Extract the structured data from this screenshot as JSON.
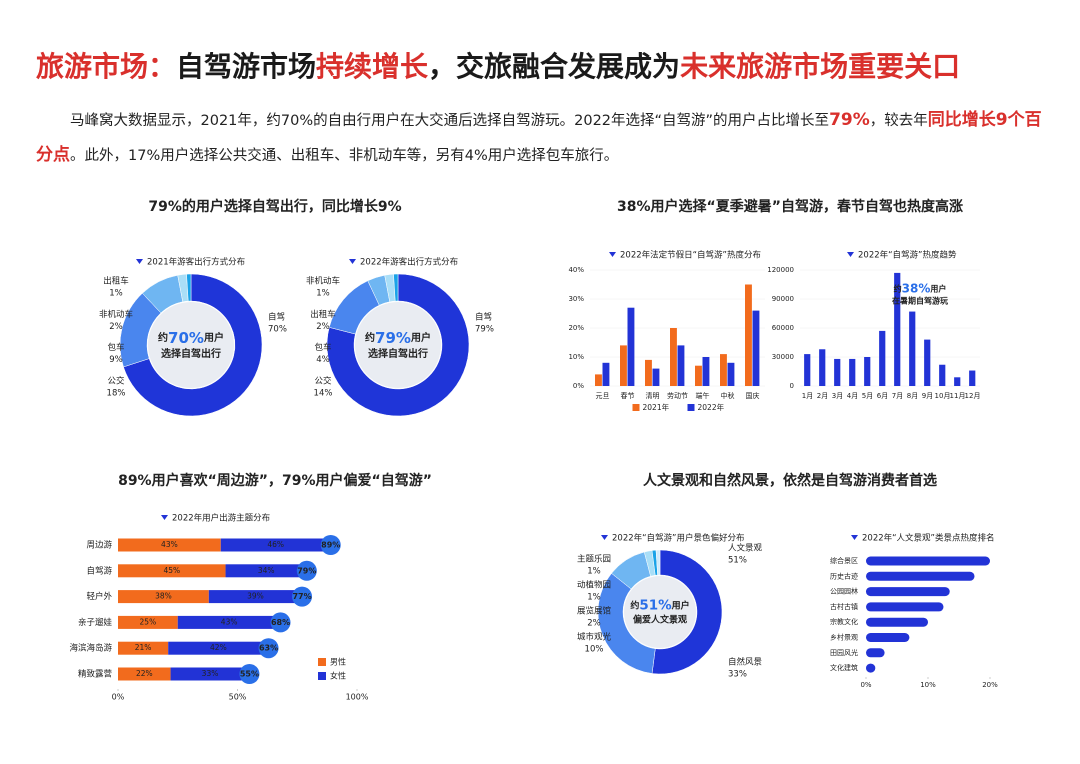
{
  "header": {
    "title": [
      {
        "text": "旅游市场：",
        "color": "#d9302c"
      },
      {
        "text": "自驾游市场",
        "color": "#1a1a1a"
      },
      {
        "text": "持续增长",
        "color": "#d9302c"
      },
      {
        "text": "，交旅融合发展成为",
        "color": "#1a1a1a"
      },
      {
        "text": "未来旅游市场重要关口",
        "color": "#d9302c"
      }
    ]
  },
  "intro": {
    "highlight_color": "#d9302c",
    "parts": [
      {
        "text": "马峰窝大数据显示，2021年，约70%的自由行用户在大交通后选择自驾游玩。2022年选择“自驾游”的用户占比增长至",
        "highlight": false
      },
      {
        "text": "79%",
        "highlight": true
      },
      {
        "text": "，较去年",
        "highlight": false
      },
      {
        "text": "同比增长9个百分点",
        "highlight": true
      },
      {
        "text": "。此外，17%用户选择公共交通、出租车、非机动车等，另有4%用户选择包车旅行。",
        "highlight": false
      }
    ]
  },
  "panels": [
    {
      "title": "79%的用户选择自驾出行，同比增长9%",
      "charts": [
        {
          "type": "donut",
          "subtitle": "2021年游客出行方式分布",
          "center": {
            "before": "约",
            "highlight": "70%",
            "after": "用户",
            "line2": "选择自驾出行"
          },
          "categories": [
            "自驾",
            "公交",
            "包车",
            "非机动车",
            "出租车"
          ],
          "values": [
            70,
            18,
            9,
            2,
            1
          ],
          "value_labels": [
            "70%",
            "18%",
            "9%",
            "2%",
            "1%"
          ],
          "colors": [
            "#1f35d8",
            "#4a86ee",
            "#6fb6f2",
            "#a9def7",
            "#1aa3e8"
          ]
        },
        {
          "type": "donut",
          "subtitle": "2022年游客出行方式分布",
          "center": {
            "before": "约",
            "highlight": "79%",
            "after": "用户",
            "line2": "选择自驾出行"
          },
          "categories": [
            "自驾",
            "公交",
            "包车",
            "出租车",
            "非机动车"
          ],
          "values": [
            79,
            14,
            4,
            2,
            1
          ],
          "value_labels": [
            "79%",
            "14%",
            "4%",
            "2%",
            "1%"
          ],
          "colors": [
            "#1f35d8",
            "#4a86ee",
            "#6fb6f2",
            "#a9def7",
            "#1aa3e8"
          ]
        }
      ]
    },
    {
      "title": "38%用户选择“夏季避暑”自驾游，春节自驾也热度高涨",
      "charts": [
        {
          "type": "bar",
          "subtitle": "2022年法定节假日“自驾游”热度分布",
          "categories": [
            "元旦",
            "春节",
            "清明",
            "劳动节",
            "端午",
            "中秋",
            "国庆"
          ],
          "series": [
            {
              "name": "2021年",
              "color": "#f26b1d",
              "values": [
                4,
                14,
                9,
                20,
                7,
                11,
                35
              ]
            },
            {
              "name": "2022年",
              "color": "#2233d6",
              "values": [
                8,
                27,
                6,
                14,
                10,
                8,
                26
              ]
            }
          ],
          "ylim": [
            0,
            40
          ],
          "yticks": [
            {
              "value": 0,
              "label": "0%"
            },
            {
              "value": 10,
              "label": "10%"
            },
            {
              "value": 20,
              "label": "20%"
            },
            {
              "value": 30,
              "label": "30%"
            },
            {
              "value": 40,
              "label": "40%"
            }
          ]
        },
        {
          "type": "bar",
          "subtitle": "2022年“自驾游”热度趋势",
          "categories": [
            "1月",
            "2月",
            "3月",
            "4月",
            "5月",
            "6月",
            "7月",
            "8月",
            "9月",
            "10月",
            "11月",
            "12月"
          ],
          "series": [
            {
              "name": "热度",
              "color": "#2233d6",
              "values": [
                33000,
                38000,
                28000,
                28000,
                30000,
                57000,
                117000,
                77000,
                48000,
                22000,
                9000,
                16000
              ]
            }
          ],
          "ylim": [
            0,
            120000
          ],
          "yticks": [
            0,
            30000,
            60000,
            90000,
            120000
          ],
          "annotation": {
            "before": "约",
            "highlight": "38%",
            "after": "用户",
            "line2": "在暑期自驾游玩"
          }
        }
      ]
    },
    {
      "title": "89%用户喜欢“周边游”，79%用户偏爱“自驾游”",
      "charts": [
        {
          "type": "stacked_hbar",
          "subtitle": "2022年用户出游主题分布",
          "categories": [
            "周边游",
            "自驾游",
            "轻户外",
            "亲子遛娃",
            "海滨海岛游",
            "精致露营"
          ],
          "series": [
            {
              "name": "男性",
              "color": "#f26b1d",
              "values": [
                43,
                45,
                38,
                25,
                21,
                22
              ],
              "value_labels": [
                "43%",
                "45%",
                "38%",
                "25%",
                "21%",
                "22%"
              ]
            },
            {
              "name": "女性",
              "color": "#2233d6",
              "values": [
                46,
                34,
                39,
                43,
                42,
                33
              ],
              "value_labels": [
                "46%",
                "34%",
                "39%",
                "43%",
                "42%",
                "33%"
              ]
            }
          ],
          "totals": [
            89,
            79,
            77,
            68,
            63,
            55
          ],
          "total_labels": [
            "89%",
            "79%",
            "77%",
            "68%",
            "63%",
            "55%"
          ],
          "total_color": "#2a6fe8",
          "xlim": [
            0,
            100
          ],
          "xticks": [
            {
              "value": 0,
              "label": "0%"
            },
            {
              "value": 50,
              "label": "50%"
            },
            {
              "value": 100,
              "label": "100%"
            }
          ]
        }
      ]
    },
    {
      "title": "人文景观和自然风景，依然是自驾游消费者首选",
      "charts": [
        {
          "type": "donut",
          "subtitle": "2022年“自驾游”用户景色偏好分布",
          "center": {
            "before": "约",
            "highlight": "51%",
            "after": "用户",
            "line2": "偏爱人文景观"
          },
          "categories": [
            "人文景观",
            "自然风景",
            "城市观光",
            "展览展馆",
            "动植物园",
            "主题乐园"
          ],
          "values": [
            51,
            33,
            10,
            2,
            1,
            1
          ],
          "value_labels": [
            "51%",
            "33%",
            "10%",
            "2%",
            "1%",
            "1%"
          ],
          "colors": [
            "#1f35d8",
            "#4a86ee",
            "#6fb6f2",
            "#a9def7",
            "#1aa3e8",
            "#cfeafb"
          ]
        },
        {
          "type": "hbar",
          "subtitle": "2022年“人文景观”类景点热度排名",
          "categories": [
            "综合景区",
            "历史古迹",
            "公园园林",
            "古村古镇",
            "宗教文化",
            "乡村景观",
            "田园风光",
            "文化建筑"
          ],
          "values": [
            20,
            17.5,
            13.5,
            12.5,
            10,
            7,
            3,
            1.5
          ],
          "color": "#2233d6",
          "xlim": [
            0,
            20
          ],
          "xticks": [
            {
              "value": 0,
              "label": "0%"
            },
            {
              "value": 10,
              "label": "10%"
            },
            {
              "value": 20,
              "label": "20%"
            }
          ]
        }
      ]
    }
  ]
}
